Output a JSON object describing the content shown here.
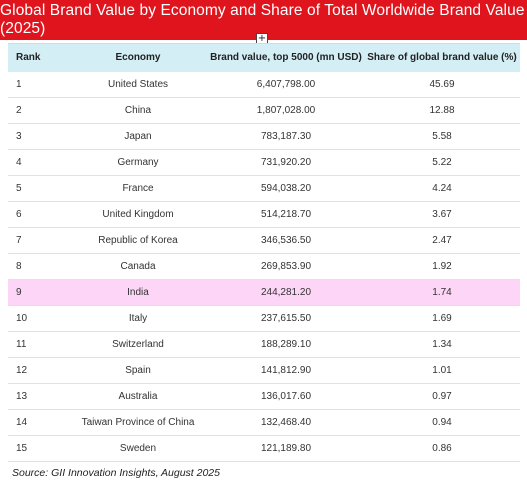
{
  "title": "Global Brand Value by Economy and Share of Total Worldwide Brand Value (2025)",
  "columns": [
    "Rank",
    "Economy",
    "Brand value, top 5000 (mn USD)",
    "Share of global brand value (%)"
  ],
  "chart_data": {
    "type": "table",
    "title": "Global Brand Value by Economy and Share of Total Worldwide Brand Value (2025)",
    "columns": [
      "Rank",
      "Economy",
      "Brand value, top 5000 (mn USD)",
      "Share of global brand value (%)"
    ],
    "rows": [
      {
        "rank": "1",
        "economy": "United States",
        "value": "6,407,798.00",
        "share": "45.69"
      },
      {
        "rank": "2",
        "economy": "China",
        "value": "1,807,028.00",
        "share": "12.88"
      },
      {
        "rank": "3",
        "economy": "Japan",
        "value": "783,187.30",
        "share": "5.58"
      },
      {
        "rank": "4",
        "economy": "Germany",
        "value": "731,920.20",
        "share": "5.22"
      },
      {
        "rank": "5",
        "economy": "France",
        "value": "594,038.20",
        "share": "4.24"
      },
      {
        "rank": "6",
        "economy": "United Kingdom",
        "value": "514,218.70",
        "share": "3.67"
      },
      {
        "rank": "7",
        "economy": "Republic of Korea",
        "value": "346,536.50",
        "share": "2.47"
      },
      {
        "rank": "8",
        "economy": "Canada",
        "value": "269,853.90",
        "share": "1.92"
      },
      {
        "rank": "9",
        "economy": "India",
        "value": "244,281.20",
        "share": "1.74",
        "highlight": true
      },
      {
        "rank": "10",
        "economy": "Italy",
        "value": "237,615.50",
        "share": "1.69"
      },
      {
        "rank": "11",
        "economy": "Switzerland",
        "value": "188,289.10",
        "share": "1.34"
      },
      {
        "rank": "12",
        "economy": "Spain",
        "value": "141,812.90",
        "share": "1.01"
      },
      {
        "rank": "13",
        "economy": "Australia",
        "value": "136,017.60",
        "share": "0.97"
      },
      {
        "rank": "14",
        "economy": "Taiwan Province of China",
        "value": "132,468.40",
        "share": "0.94"
      },
      {
        "rank": "15",
        "economy": "Sweden",
        "value": "121,189.80",
        "share": "0.86"
      }
    ]
  },
  "source": "Source: GII Innovation Insights, August 2025",
  "colors": {
    "title_bar": "#e0141c",
    "header_bg": "#d3eef4",
    "highlight_row": "#fdd5f6"
  },
  "icons": {
    "move_handle": "move-handle-icon"
  }
}
